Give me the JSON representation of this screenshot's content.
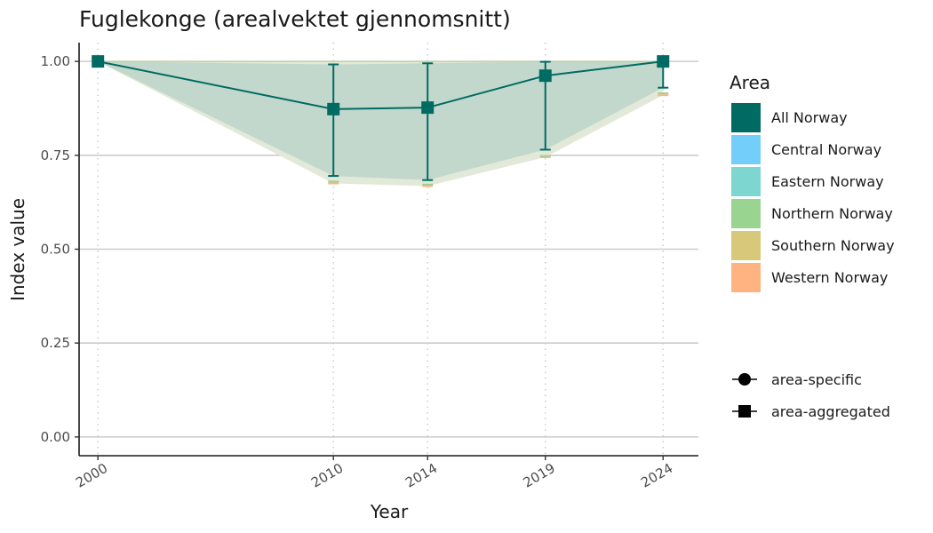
{
  "chart_data": {
    "type": "line",
    "title": "Fuglekonge (arealvektet gjennomsnitt)",
    "xlabel": "Year",
    "ylabel": "Index value",
    "x": [
      2000,
      2010,
      2014,
      2019,
      2024
    ],
    "xlim": [
      1999.2,
      2025.5
    ],
    "ylim": [
      -0.05,
      1.05
    ],
    "yticks": [
      0.0,
      0.25,
      0.5,
      0.75,
      1.0
    ],
    "ytick_labels": [
      "0.00",
      "0.25",
      "0.50",
      "0.75",
      "1.00"
    ],
    "xtick_labels": [
      "2000",
      "2010",
      "2014",
      "2019",
      "2024"
    ],
    "grid": {
      "horizontal": true,
      "vertical_dotted": true
    },
    "series": [
      {
        "name": "All Norway",
        "marker": "square",
        "color": "#006b62",
        "values": [
          1.0,
          0.873,
          0.877,
          0.962,
          1.0
        ],
        "lower": [
          1.0,
          0.695,
          0.684,
          0.765,
          0.93
        ],
        "upper": [
          1.0,
          0.992,
          0.995,
          0.999,
          1.0
        ]
      }
    ],
    "bands": [
      {
        "name": "Western Norway",
        "color": "#ffb380",
        "lower": [
          1.0,
          0.675,
          0.668,
          0.745,
          0.91
        ],
        "upper": [
          1.0,
          1.0,
          1.0,
          1.0,
          1.0
        ]
      },
      {
        "name": "Northern Norway",
        "color": "#99d491",
        "lower": [
          1.0,
          0.68,
          0.672,
          0.748,
          0.915
        ],
        "upper": [
          1.0,
          1.0,
          1.0,
          1.0,
          1.0
        ]
      }
    ],
    "band_colors": {
      "outer": "#e3e9d9",
      "inner": "#c3d8cc"
    },
    "legend": {
      "placement": "right",
      "area_title": "Area",
      "areas": [
        {
          "label": "All Norway",
          "color": "#006b62"
        },
        {
          "label": "Central Norway",
          "color": "#73cff9"
        },
        {
          "label": "Eastern Norway",
          "color": "#7dd6cf"
        },
        {
          "label": "Northern Norway",
          "color": "#99d491"
        },
        {
          "label": "Southern Norway",
          "color": "#d8c97a"
        },
        {
          "label": "Western Norway",
          "color": "#ffb380"
        }
      ],
      "shapes": [
        {
          "label": "area-specific",
          "shape": "circle"
        },
        {
          "label": "area-aggregated",
          "shape": "square"
        }
      ]
    }
  }
}
